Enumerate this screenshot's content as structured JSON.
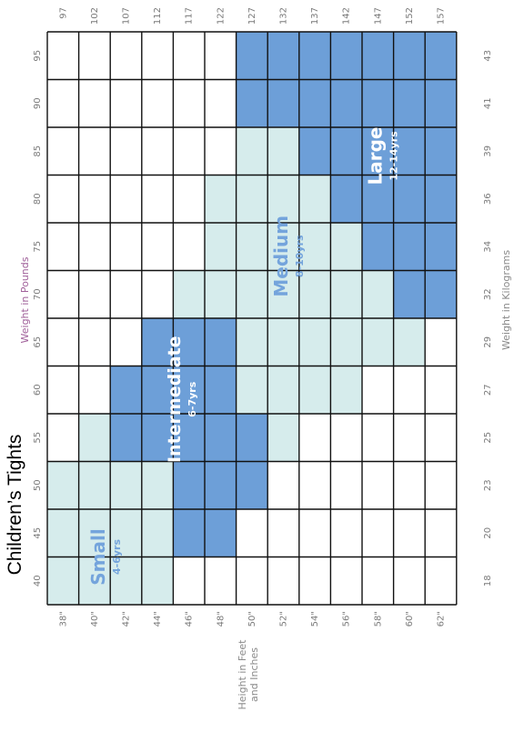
{
  "title": "Children’s Tights",
  "axis_titles": {
    "pounds": "Weight in Pounds",
    "kilograms": "Weight in Kilograms",
    "height_line1": "Height in Feet",
    "height_line2": "and Inches"
  },
  "colors": {
    "light": "#d6ecec",
    "dark": "#6d9fd8",
    "grid": "#111111",
    "empty": "#ffffff",
    "label_on_light": "#74a4dc",
    "label_on_dark": "#ffffff"
  },
  "chart_data": {
    "type": "table",
    "pounds": [
      "40",
      "45",
      "50",
      "55",
      "60",
      "65",
      "70",
      "75",
      "80",
      "85",
      "90",
      "95"
    ],
    "kilograms": [
      "18",
      "20",
      "23",
      "25",
      "27",
      "29",
      "32",
      "34",
      "36",
      "39",
      "41",
      "43"
    ],
    "heights_in": [
      "38\"",
      "40\"",
      "42\"",
      "44\"",
      "46\"",
      "48\"",
      "50\"",
      "52\"",
      "54\"",
      "56\"",
      "58\"",
      "60\"",
      "62\""
    ],
    "heights_cm": [
      "97",
      "102",
      "107",
      "112",
      "117",
      "122",
      "127",
      "132",
      "137",
      "142",
      "147",
      "152",
      "157"
    ],
    "cells": [
      [
        "L",
        "L",
        "L",
        "",
        "",
        "",
        "",
        "",
        "",
        "",
        "",
        ""
      ],
      [
        "L",
        "L",
        "L",
        "L",
        "",
        "",
        "",
        "",
        "",
        "",
        "",
        ""
      ],
      [
        "L",
        "L",
        "L",
        "D",
        "D",
        "",
        "",
        "",
        "",
        "",
        "",
        ""
      ],
      [
        "L",
        "L",
        "L",
        "D",
        "D",
        "D",
        "",
        "",
        "",
        "",
        "",
        ""
      ],
      [
        "",
        "D",
        "D",
        "D",
        "D",
        "D",
        "L",
        "",
        "",
        "",
        "",
        ""
      ],
      [
        "",
        "D",
        "D",
        "D",
        "D",
        "D",
        "L",
        "L",
        "L",
        "",
        "",
        ""
      ],
      [
        "",
        "",
        "D",
        "D",
        "L",
        "L",
        "L",
        "L",
        "L",
        "L",
        "D",
        "D"
      ],
      [
        "",
        "",
        "",
        "L",
        "L",
        "L",
        "L",
        "L",
        "L",
        "L",
        "D",
        "D"
      ],
      [
        "",
        "",
        "",
        "",
        "L",
        "L",
        "L",
        "L",
        "L",
        "D",
        "D",
        "D"
      ],
      [
        "",
        "",
        "",
        "",
        "L",
        "L",
        "L",
        "L",
        "D",
        "D",
        "D",
        "D"
      ],
      [
        "",
        "",
        "",
        "",
        "",
        "L",
        "L",
        "D",
        "D",
        "D",
        "D",
        "D"
      ],
      [
        "",
        "",
        "",
        "",
        "",
        "L",
        "D",
        "D",
        "D",
        "D",
        "D",
        "D"
      ],
      [
        "",
        "",
        "",
        "",
        "",
        "",
        "D",
        "D",
        "D",
        "D",
        "D",
        "D"
      ]
    ],
    "sizes": [
      {
        "name": "Small",
        "age": "4-6yrs",
        "tone": "L",
        "center_col": 1.0,
        "center_row": 2.0
      },
      {
        "name": "Intermediate",
        "age": "6-7yrs",
        "tone": "D",
        "center_col": 4.3,
        "center_row": 4.4
      },
      {
        "name": "Medium",
        "age": "8-10yrs",
        "tone": "L",
        "center_col": 7.3,
        "center_row": 7.8
      },
      {
        "name": "Large",
        "age": "12-14yrs",
        "tone": "D",
        "center_col": 9.4,
        "center_row": 10.8
      }
    ]
  }
}
